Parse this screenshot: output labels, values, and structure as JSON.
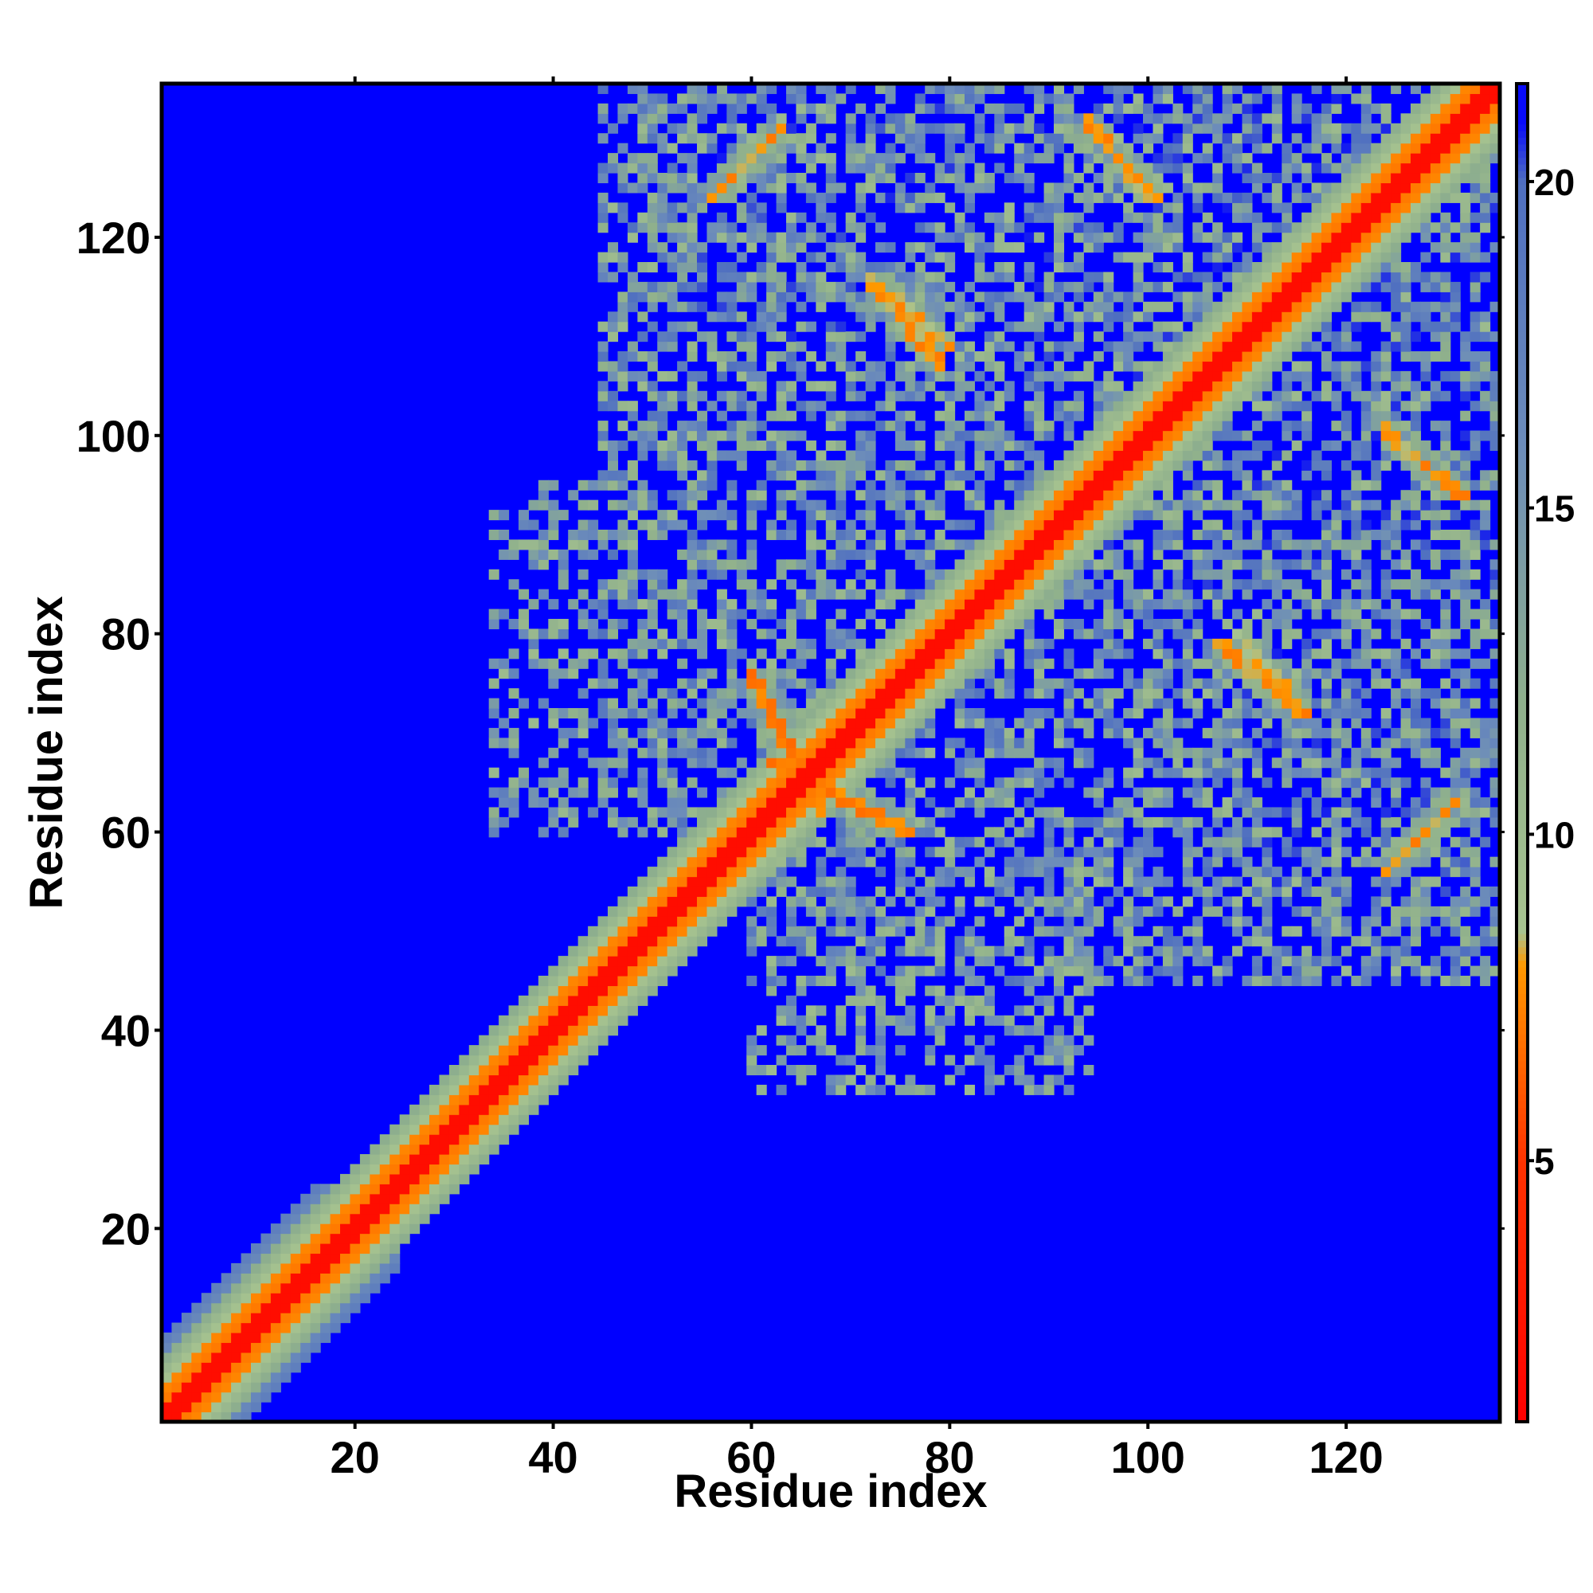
{
  "chart_data": {
    "type": "heatmap",
    "title": "",
    "xlabel": "Residue index",
    "ylabel": "Residue index",
    "xlim": [
      1,
      135
    ],
    "ylim": [
      1,
      135
    ],
    "n_residues": 135,
    "x_ticks": [
      20,
      40,
      60,
      80,
      100,
      120
    ],
    "x_tick_labels": [
      "20",
      "40",
      "60",
      "80",
      "100",
      "120"
    ],
    "y_ticks": [
      20,
      40,
      60,
      80,
      100,
      120
    ],
    "y_tick_labels": [
      "20",
      "40",
      "60",
      "80",
      "100",
      "120"
    ],
    "colorbar": {
      "range": [
        1,
        21.5
      ],
      "ticks": [
        5,
        10,
        15,
        20
      ],
      "tick_labels": [
        "5",
        "10",
        "15",
        "20"
      ],
      "stops": [
        {
          "value": 1.0,
          "color": "#ff0000"
        },
        {
          "value": 5.0,
          "color": "#ff3300"
        },
        {
          "value": 8.0,
          "color": "#ff9900"
        },
        {
          "value": 8.5,
          "color": "#a8c490"
        },
        {
          "value": 12.0,
          "color": "#8fb08c"
        },
        {
          "value": 16.0,
          "color": "#6c8cba"
        },
        {
          "value": 20.0,
          "color": "#4f6fc0"
        },
        {
          "value": 21.0,
          "color": "#0000ff"
        }
      ],
      "out_of_range_color": "#0000ff"
    },
    "description_of_values": "Symmetric residue-residue distance map; near-diagonal values low (red), contact patches orange/green, background > 21 (blue).",
    "contact_patches": [
      {
        "x": [
          60,
          67
        ],
        "y": [
          62,
          76
        ],
        "value": 6.5,
        "orientation": "anti"
      },
      {
        "x": [
          62,
          76
        ],
        "y": [
          60,
          67
        ],
        "value": 6.5,
        "orientation": "anti"
      },
      {
        "x": [
          56,
          63
        ],
        "y": [
          124,
          131
        ],
        "value": 7.0,
        "orientation": "parallel"
      },
      {
        "x": [
          124,
          131
        ],
        "y": [
          56,
          63
        ],
        "value": 7.0,
        "orientation": "parallel"
      },
      {
        "x": [
          72,
          79
        ],
        "y": [
          107,
          116
        ],
        "value": 7.0,
        "orientation": "anti"
      },
      {
        "x": [
          107,
          116
        ],
        "y": [
          72,
          79
        ],
        "value": 7.0,
        "orientation": "anti"
      },
      {
        "x": [
          94,
          100
        ],
        "y": [
          124,
          132
        ],
        "value": 7.0,
        "orientation": "anti"
      },
      {
        "x": [
          124,
          132
        ],
        "y": [
          94,
          100
        ],
        "value": 7.0,
        "orientation": "anti"
      },
      {
        "x": [
          109,
          115
        ],
        "y": [
          73,
          80
        ],
        "value": 7.5,
        "orientation": "anti"
      },
      {
        "x": [
          73,
          80
        ],
        "y": [
          109,
          115
        ],
        "value": 7.5,
        "orientation": "anti"
      },
      {
        "x": [
          124,
          131
        ],
        "y": [
          94,
          101
        ],
        "value": 7.0,
        "orientation": "anti"
      },
      {
        "x": [
          94,
          101
        ],
        "y": [
          124,
          131
        ],
        "value": 7.0,
        "orientation": "anti"
      },
      {
        "x": [
          14,
          23
        ],
        "y": [
          14,
          23
        ],
        "value": 7.5,
        "orientation": "parallel"
      },
      {
        "x": [
          2,
          12
        ],
        "y": [
          2,
          12
        ],
        "value": 7.0,
        "orientation": "parallel"
      }
    ],
    "diffuse_regions": [
      {
        "x": [
          45,
          90
        ],
        "y": [
          60,
          135
        ],
        "level": 0.55
      },
      {
        "x": [
          60,
          135
        ],
        "y": [
          45,
          90
        ],
        "level": 0.55
      },
      {
        "x": [
          88,
          135
        ],
        "y": [
          85,
          135
        ],
        "level": 0.6
      },
      {
        "x": [
          34,
          50
        ],
        "y": [
          60,
          92
        ],
        "level": 0.45
      },
      {
        "x": [
          60,
          92
        ],
        "y": [
          34,
          50
        ],
        "level": 0.45
      },
      {
        "x": [
          54,
          80
        ],
        "y": [
          110,
          133
        ],
        "level": 0.6
      },
      {
        "x": [
          110,
          133
        ],
        "y": [
          54,
          80
        ],
        "level": 0.6
      },
      {
        "x": [
          88,
          118
        ],
        "y": [
          88,
          118
        ],
        "level": 0.55
      },
      {
        "x": [
          83,
          95
        ],
        "y": [
          36,
          50
        ],
        "level": 0.4
      },
      {
        "x": [
          36,
          50
        ],
        "y": [
          83,
          95
        ],
        "level": 0.4
      }
    ]
  }
}
